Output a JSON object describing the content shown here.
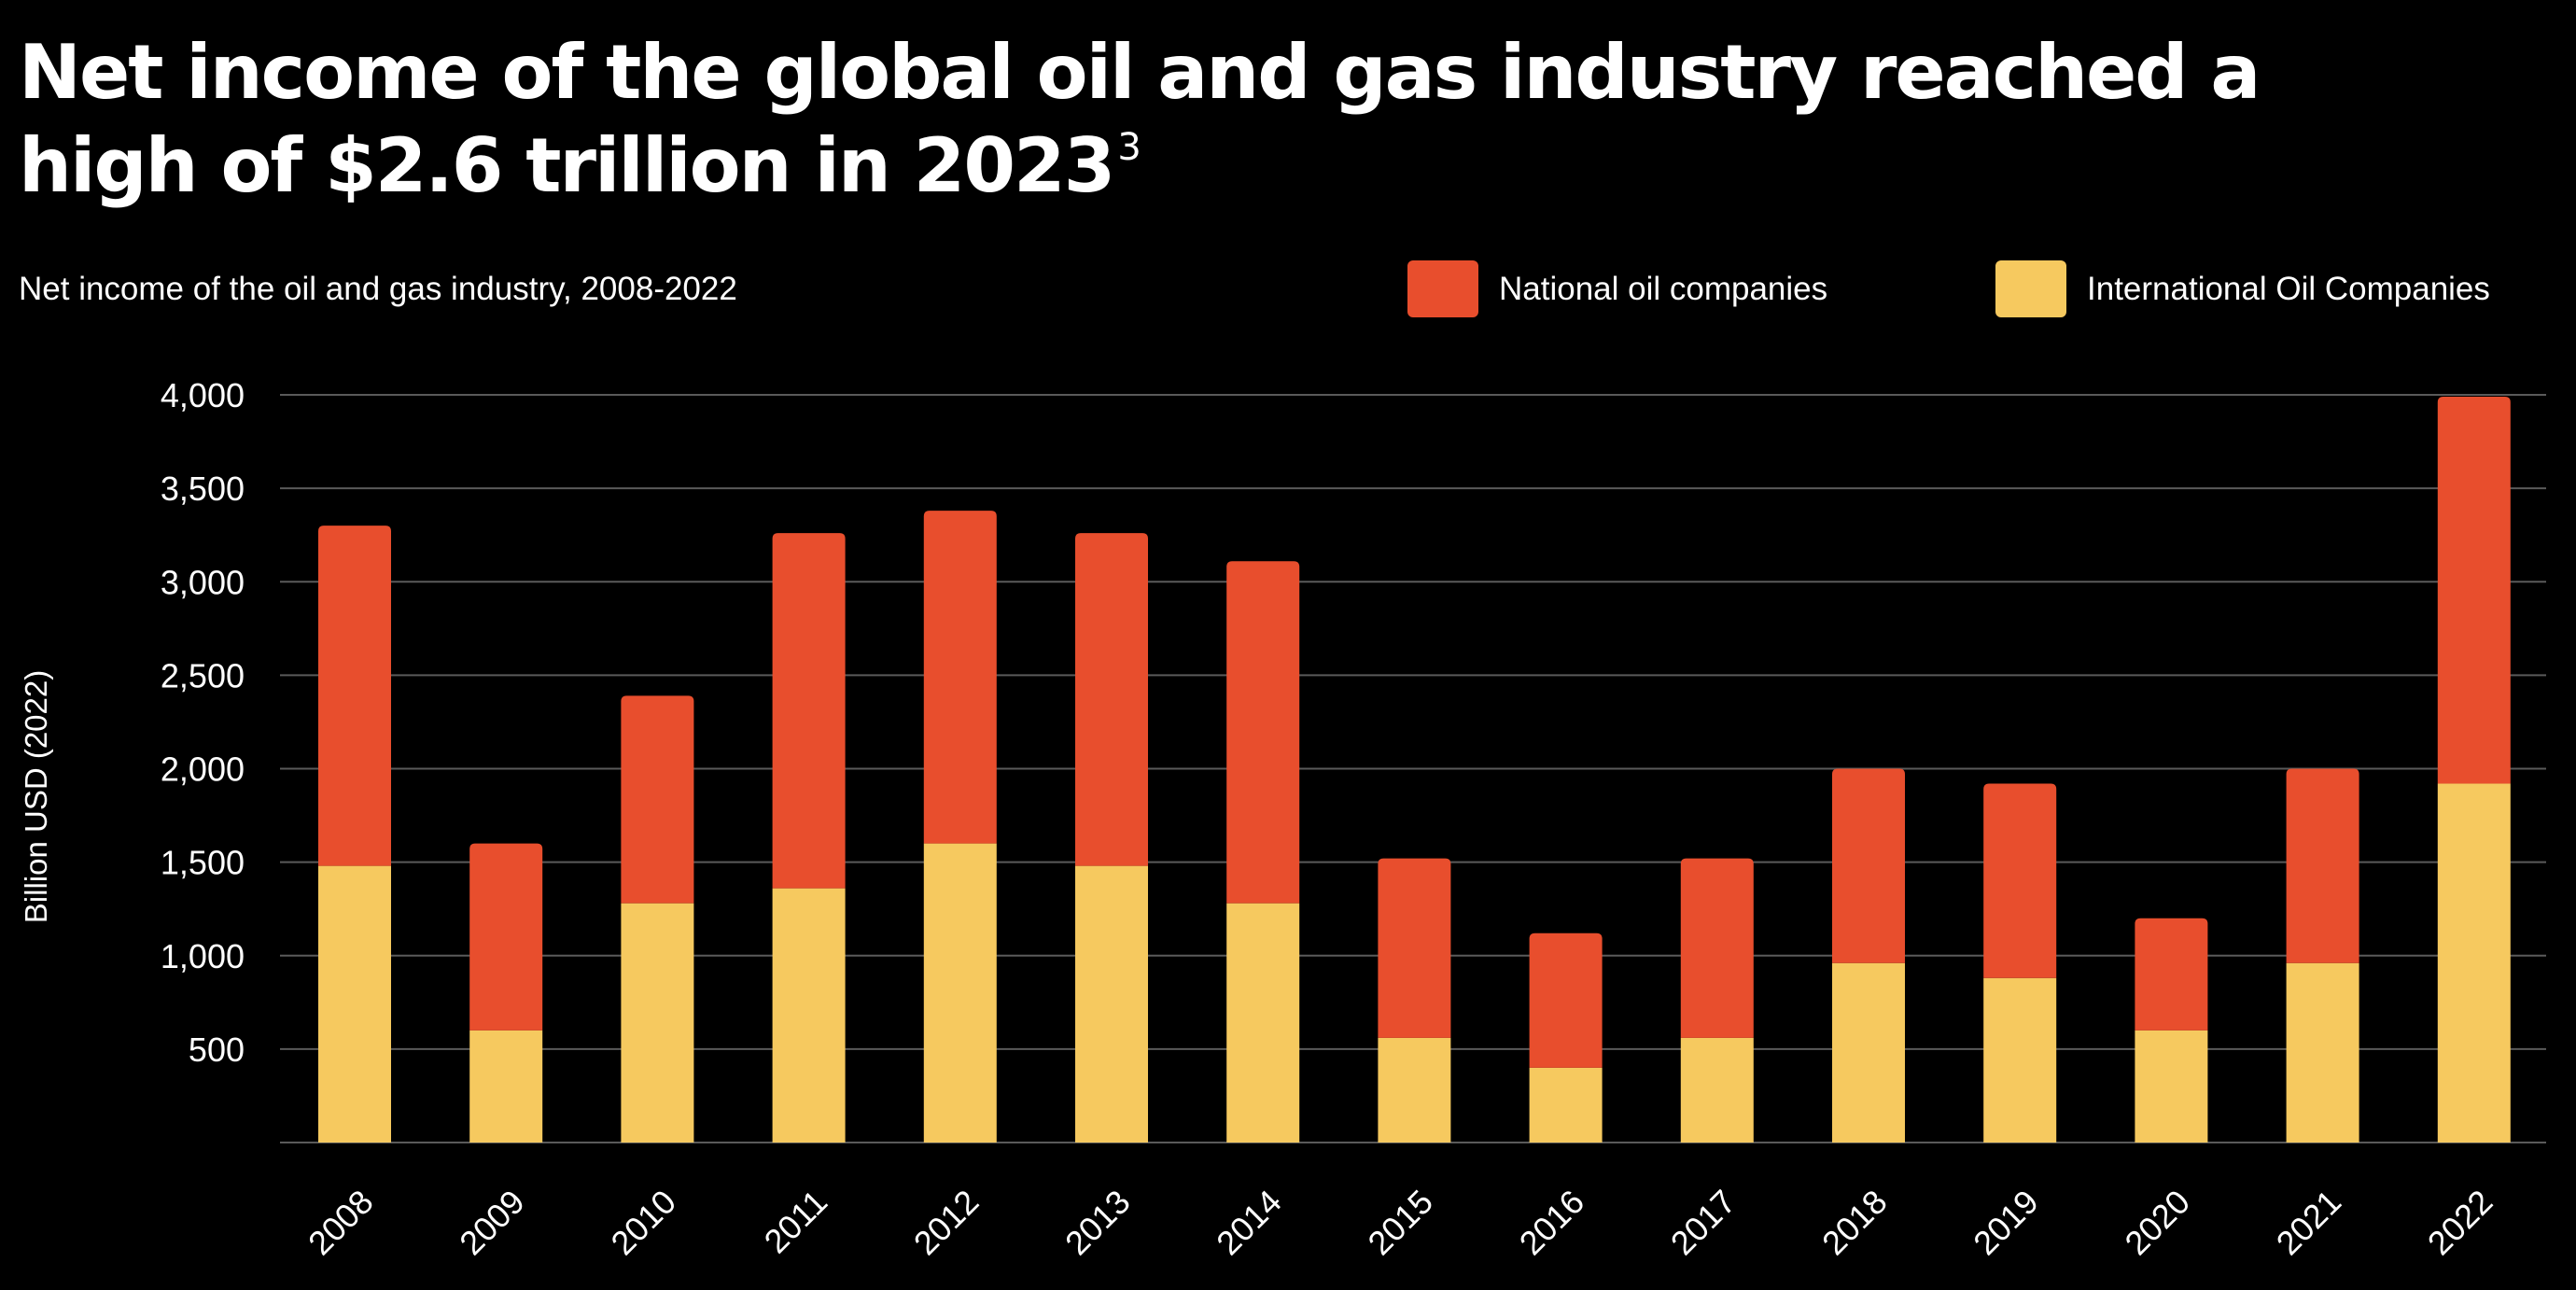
{
  "title": "Net income of the global oil and gas industry reached a high of $2.6 trillion in 2023",
  "title_footnote": "3",
  "subtitle": "Net income of the oil and gas industry, 2008-2022",
  "legend": [
    {
      "label": "National oil companies",
      "color": "#E84E2D"
    },
    {
      "label": "International Oil Companies",
      "color": "#F6C95F"
    }
  ],
  "chart_data": {
    "type": "bar",
    "stacked": true,
    "categories": [
      "2008",
      "2009",
      "2010",
      "2011",
      "2012",
      "2013",
      "2014",
      "2015",
      "2016",
      "2017",
      "2018",
      "2019",
      "2020",
      "2021",
      "2022"
    ],
    "series": [
      {
        "name": "International Oil Companies",
        "color": "#F6C95F",
        "values": [
          1480,
          600,
          1280,
          1360,
          1600,
          1480,
          1280,
          560,
          400,
          560,
          960,
          880,
          600,
          960,
          1920
        ]
      },
      {
        "name": "National oil companies",
        "color": "#E84E2D",
        "values": [
          1820,
          1000,
          1110,
          1900,
          1780,
          1780,
          1830,
          960,
          720,
          960,
          1040,
          1040,
          600,
          1040,
          2070
        ]
      }
    ],
    "ylabel": "Billion USD (2022)",
    "xlabel": "",
    "ylim": [
      0,
      4000
    ],
    "yticks": [
      500,
      1000,
      1500,
      2000,
      2500,
      3000,
      3500,
      4000
    ],
    "ytick_labels": [
      "500",
      "1,000",
      "1,500",
      "2,000",
      "2,500",
      "3,000",
      "3,500",
      "4,000"
    ],
    "grid": true,
    "legend_position": "top-right",
    "colors": {
      "background": "#000000",
      "gridline": "#5a5a5a",
      "text": "#ffffff"
    }
  }
}
